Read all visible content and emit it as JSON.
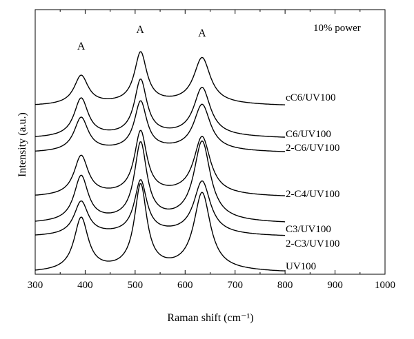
{
  "chart_data": {
    "type": "line",
    "title": "",
    "xlabel": "Raman shift (cm⁻¹)",
    "ylabel": "Intensity (a.u.)",
    "xlim": [
      300,
      1000
    ],
    "x_ticks": [
      "300",
      "400",
      "500",
      "600",
      "700",
      "800",
      "900",
      "1000"
    ],
    "y_ticks": [],
    "grid": false,
    "annotation": "10% power",
    "peak_labels": [
      {
        "x": 392,
        "text": "A"
      },
      {
        "x": 510,
        "text": "A"
      },
      {
        "x": 634,
        "text": "A"
      }
    ],
    "series": [
      {
        "name": "cC6/UV100",
        "baseline": 0.7,
        "peaks": [
          0.12,
          0.21,
          0.19
        ]
      },
      {
        "name": "C6/UV100",
        "baseline": 0.565,
        "peaks": [
          0.16,
          0.23,
          0.2
        ]
      },
      {
        "name": "2-C6/UV100",
        "baseline": 0.505,
        "peaks": [
          0.14,
          0.2,
          0.19
        ]
      },
      {
        "name": "2-C4/UV100",
        "baseline": 0.32,
        "peaks": [
          0.165,
          0.26,
          0.24
        ]
      },
      {
        "name": "C3/UV100",
        "baseline": 0.21,
        "peaks": [
          0.19,
          0.32,
          0.33
        ]
      },
      {
        "name": "2-C3/UV100",
        "baseline": 0.155,
        "peaks": [
          0.14,
          0.22,
          0.22
        ]
      },
      {
        "name": "UV100",
        "baseline": 0.005,
        "peaks": [
          0.22,
          0.35,
          0.32
        ]
      }
    ]
  }
}
